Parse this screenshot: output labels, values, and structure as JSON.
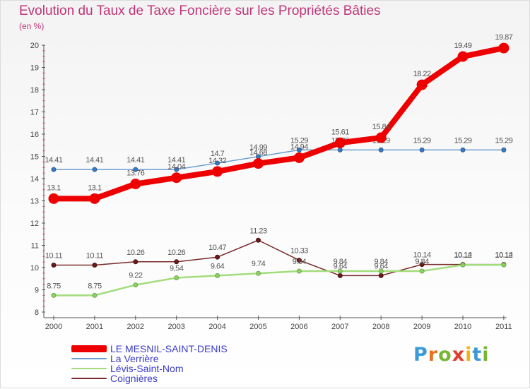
{
  "title": "Evolution du Taux de Taxe Foncière sur les Propriétés Bâties",
  "ylabel": "(en %)",
  "chart_data": {
    "type": "line",
    "title": "Evolution du Taux de Taxe Foncière sur les Propriétés Bâties",
    "xlabel": "",
    "ylabel": "(en %)",
    "categories": [
      "2000",
      "2001",
      "2002",
      "2003",
      "2004",
      "2005",
      "2006",
      "2007",
      "2008",
      "2009",
      "2010",
      "2011"
    ],
    "ylim": [
      8,
      20
    ],
    "yticks": [
      8,
      9,
      10,
      11,
      12,
      13,
      14,
      15,
      16,
      17,
      18,
      19,
      20
    ],
    "grid": false,
    "legend_position": "bottom-left",
    "series": [
      {
        "name": "LE MESNIL-SAINT-DENIS",
        "color": "#ee0000",
        "values": [
          13.1,
          13.1,
          13.76,
          14.04,
          14.32,
          14.68,
          14.94,
          15.61,
          15.84,
          18.22,
          19.49,
          19.87
        ]
      },
      {
        "name": "La Verrière",
        "color": "#5b9bd5",
        "values": [
          14.41,
          14.41,
          14.41,
          14.41,
          14.7,
          14.99,
          15.29,
          15.29,
          15.29,
          15.29,
          15.29,
          15.29
        ]
      },
      {
        "name": "Lévis-Saint-Nom",
        "color": "#99dd77",
        "values": [
          8.75,
          8.75,
          9.22,
          9.54,
          9.64,
          9.74,
          9.84,
          9.84,
          9.84,
          9.84,
          10.12,
          10.12
        ]
      },
      {
        "name": "Coignières",
        "color": "#772222",
        "values": [
          10.11,
          10.11,
          10.26,
          10.26,
          10.47,
          11.23,
          10.33,
          9.64,
          9.64,
          10.14,
          10.14,
          10.14
        ]
      }
    ]
  },
  "logo": {
    "letters": [
      "P",
      "r",
      "o",
      "x",
      "i",
      "t",
      "i"
    ],
    "colors": [
      "#3a9ad9",
      "#e8731c",
      "#79b534",
      "#e13b2c",
      "#f0b318",
      "#3a9ad9",
      "#79b534"
    ]
  }
}
